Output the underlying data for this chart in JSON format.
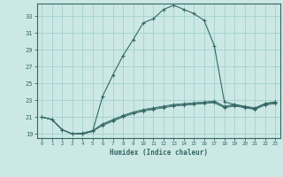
{
  "title": "",
  "xlabel": "Humidex (Indice chaleur)",
  "bg_color": "#cce8e4",
  "grid_color": "#99cccc",
  "line_color": "#336666",
  "xlim": [
    -0.5,
    23.5
  ],
  "ylim": [
    18.5,
    34.5
  ],
  "xticks": [
    0,
    1,
    2,
    3,
    4,
    5,
    6,
    7,
    8,
    9,
    10,
    11,
    12,
    13,
    14,
    15,
    16,
    17,
    18,
    19,
    20,
    21,
    22,
    23
  ],
  "yticks": [
    19,
    21,
    23,
    25,
    27,
    29,
    31,
    33
  ],
  "main_y": [
    21.0,
    20.7,
    19.5,
    19.0,
    19.0,
    19.3,
    23.5,
    26.0,
    28.3,
    30.2,
    32.2,
    32.7,
    33.8,
    34.3,
    33.8,
    33.3,
    32.5,
    29.5,
    22.8,
    22.5,
    22.2,
    22.0,
    22.6,
    22.8
  ],
  "flat_y1": [
    21.0,
    20.7,
    19.5,
    19.0,
    19.0,
    19.3,
    20.0,
    20.5,
    21.0,
    21.4,
    21.7,
    21.9,
    22.1,
    22.3,
    22.4,
    22.5,
    22.6,
    22.7,
    22.1,
    22.3,
    22.1,
    21.9,
    22.4,
    22.6
  ],
  "flat_y2": [
    21.0,
    20.7,
    19.5,
    19.0,
    19.0,
    19.3,
    20.1,
    20.6,
    21.1,
    21.5,
    21.8,
    22.0,
    22.2,
    22.4,
    22.5,
    22.6,
    22.7,
    22.8,
    22.2,
    22.4,
    22.2,
    22.0,
    22.5,
    22.7
  ],
  "flat_y3": [
    21.0,
    20.7,
    19.5,
    19.0,
    19.1,
    19.4,
    20.2,
    20.7,
    21.2,
    21.6,
    21.9,
    22.1,
    22.3,
    22.5,
    22.6,
    22.7,
    22.8,
    22.9,
    22.3,
    22.5,
    22.3,
    22.1,
    22.6,
    22.8
  ]
}
